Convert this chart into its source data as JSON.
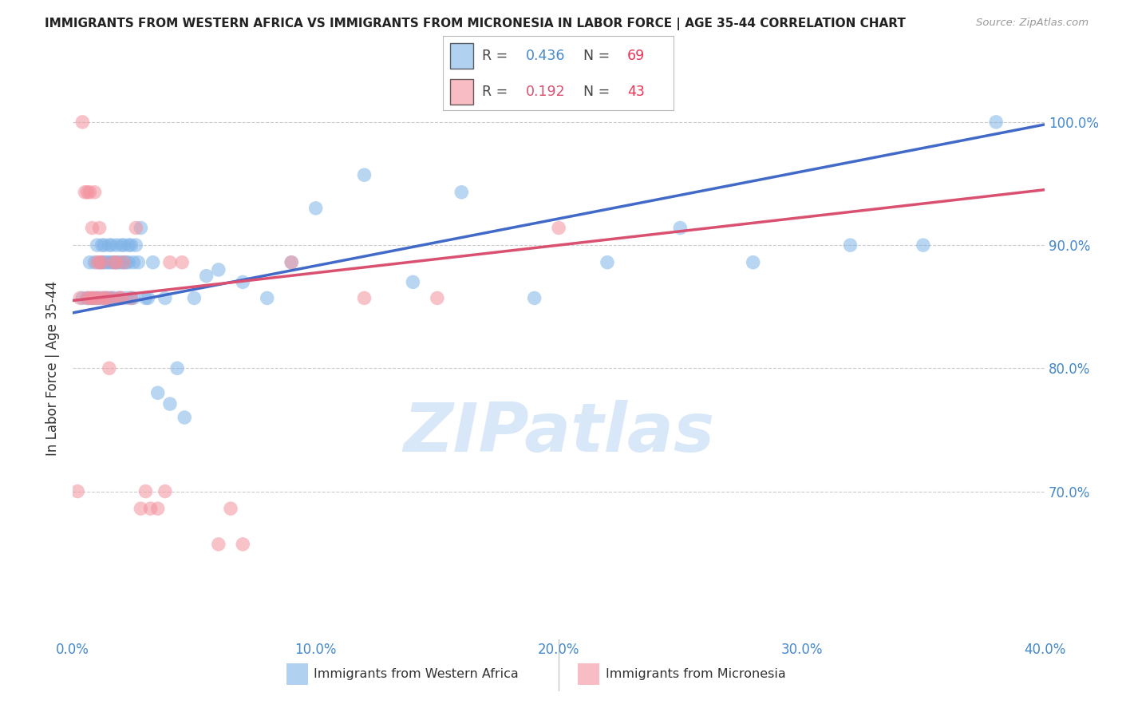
{
  "title": "IMMIGRANTS FROM WESTERN AFRICA VS IMMIGRANTS FROM MICRONESIA IN LABOR FORCE | AGE 35-44 CORRELATION CHART",
  "source": "Source: ZipAtlas.com",
  "ylabel": "In Labor Force | Age 35-44",
  "xlim": [
    0.0,
    0.4
  ],
  "ylim": [
    0.58,
    1.02
  ],
  "yticks": [
    0.7,
    0.8,
    0.9,
    1.0
  ],
  "xticks": [
    0.0,
    0.1,
    0.2,
    0.3,
    0.4
  ],
  "blue_R": 0.436,
  "blue_N": 69,
  "pink_R": 0.192,
  "pink_N": 43,
  "blue_color": "#7EB3E8",
  "pink_color": "#F4919E",
  "line_blue": "#4169C8",
  "line_pink": "#D95070",
  "title_color": "#222222",
  "axis_color": "#4488CC",
  "legend_N_color": "#EE3355",
  "watermark_color": "#D8E8F8",
  "blue_scatter_x": [
    0.004,
    0.006,
    0.007,
    0.008,
    0.009,
    0.01,
    0.01,
    0.011,
    0.011,
    0.012,
    0.012,
    0.013,
    0.013,
    0.013,
    0.014,
    0.014,
    0.015,
    0.015,
    0.015,
    0.016,
    0.016,
    0.016,
    0.017,
    0.017,
    0.018,
    0.018,
    0.019,
    0.019,
    0.02,
    0.02,
    0.02,
    0.021,
    0.021,
    0.022,
    0.022,
    0.023,
    0.023,
    0.024,
    0.024,
    0.025,
    0.025,
    0.026,
    0.027,
    0.028,
    0.03,
    0.031,
    0.033,
    0.035,
    0.038,
    0.04,
    0.043,
    0.046,
    0.05,
    0.055,
    0.06,
    0.07,
    0.08,
    0.09,
    0.1,
    0.12,
    0.14,
    0.16,
    0.19,
    0.22,
    0.25,
    0.28,
    0.32,
    0.35,
    0.38
  ],
  "blue_scatter_y": [
    0.857,
    0.857,
    0.886,
    0.857,
    0.886,
    0.857,
    0.9,
    0.886,
    0.857,
    0.886,
    0.9,
    0.886,
    0.857,
    0.9,
    0.886,
    0.857,
    0.886,
    0.9,
    0.857,
    0.886,
    0.9,
    0.857,
    0.886,
    0.857,
    0.9,
    0.886,
    0.886,
    0.857,
    0.9,
    0.886,
    0.857,
    0.886,
    0.9,
    0.886,
    0.857,
    0.9,
    0.886,
    0.857,
    0.9,
    0.886,
    0.857,
    0.9,
    0.886,
    0.914,
    0.857,
    0.857,
    0.886,
    0.78,
    0.857,
    0.771,
    0.8,
    0.76,
    0.857,
    0.875,
    0.88,
    0.87,
    0.857,
    0.886,
    0.93,
    0.957,
    0.87,
    0.943,
    0.857,
    0.886,
    0.914,
    0.886,
    0.9,
    0.9,
    1.0
  ],
  "pink_scatter_x": [
    0.002,
    0.003,
    0.004,
    0.005,
    0.006,
    0.006,
    0.007,
    0.007,
    0.008,
    0.008,
    0.009,
    0.009,
    0.01,
    0.01,
    0.011,
    0.011,
    0.012,
    0.012,
    0.013,
    0.014,
    0.015,
    0.016,
    0.017,
    0.018,
    0.019,
    0.02,
    0.021,
    0.024,
    0.026,
    0.028,
    0.03,
    0.032,
    0.035,
    0.038,
    0.04,
    0.045,
    0.06,
    0.065,
    0.07,
    0.09,
    0.12,
    0.15,
    0.2
  ],
  "pink_scatter_y": [
    0.7,
    0.857,
    1.0,
    0.943,
    0.943,
    0.857,
    0.943,
    0.857,
    0.914,
    0.857,
    0.943,
    0.857,
    0.886,
    0.857,
    0.886,
    0.914,
    0.886,
    0.857,
    0.857,
    0.857,
    0.8,
    0.857,
    0.886,
    0.886,
    0.857,
    0.857,
    0.886,
    0.857,
    0.914,
    0.686,
    0.7,
    0.686,
    0.686,
    0.7,
    0.886,
    0.886,
    0.657,
    0.686,
    0.657,
    0.886,
    0.857,
    0.857,
    0.914
  ],
  "blue_line_x0": 0.0,
  "blue_line_x1": 0.4,
  "blue_line_y0": 0.845,
  "blue_line_y1": 0.998,
  "pink_line_x0": 0.0,
  "pink_line_x1": 0.4,
  "pink_line_y0": 0.855,
  "pink_line_y1": 0.945
}
